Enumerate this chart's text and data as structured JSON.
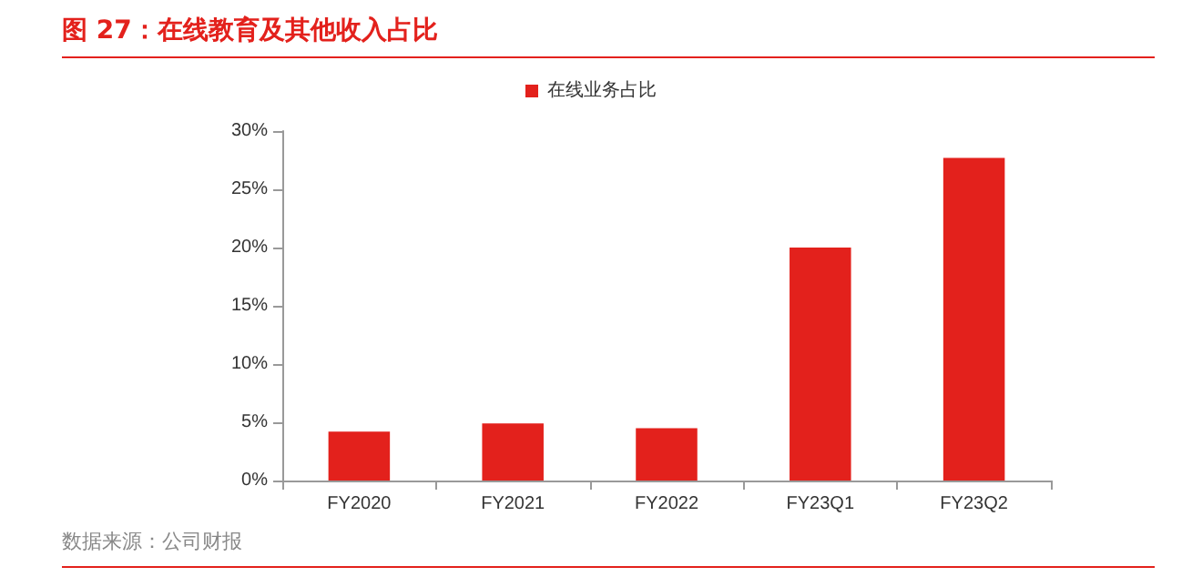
{
  "chart_data": {
    "type": "bar",
    "title": "图 27：在线教育及其他收入占比",
    "categories": [
      "FY2020",
      "FY2021",
      "FY2022",
      "FY23Q1",
      "FY23Q2"
    ],
    "series": [
      {
        "name": "在线业务占比",
        "color": "#e3211c",
        "values": [
          4.2,
          4.9,
          4.5,
          20.0,
          27.7
        ]
      }
    ],
    "ylim": [
      0,
      30
    ],
    "yticks": [
      {
        "value": 0,
        "label": "0%"
      },
      {
        "value": 5,
        "label": "5%"
      },
      {
        "value": 10,
        "label": "10%"
      },
      {
        "value": 15,
        "label": "15%"
      },
      {
        "value": 20,
        "label": "20%"
      },
      {
        "value": 25,
        "label": "25%"
      },
      {
        "value": 30,
        "label": "30%"
      }
    ],
    "grid": false,
    "legend": "top",
    "annotations": [
      "数据来源：公司财报"
    ]
  }
}
